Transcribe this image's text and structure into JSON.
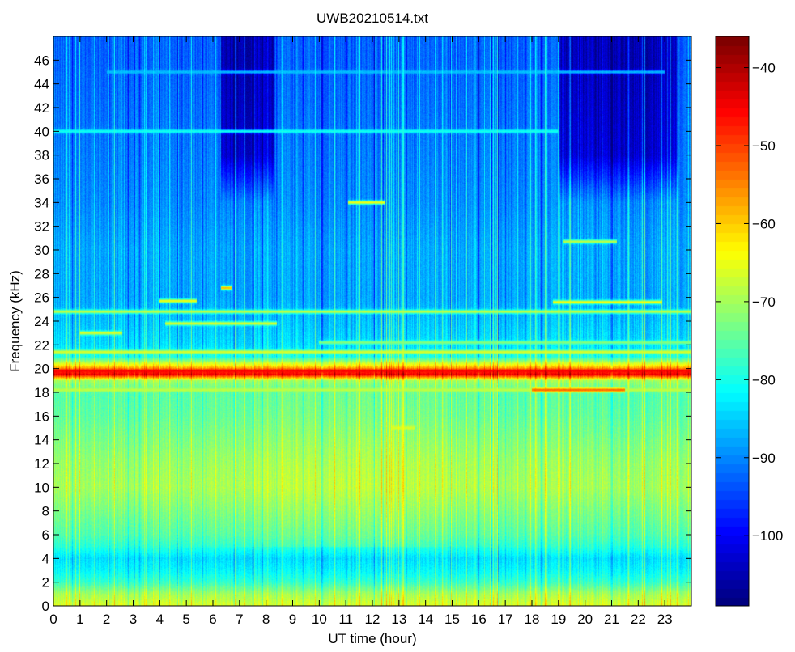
{
  "chart_data": {
    "type": "heatmap",
    "title": "UWB20210514.txt",
    "xlabel": "UT time (hour)",
    "ylabel": "Frequency (kHz)",
    "xlim": [
      0,
      24
    ],
    "ylim": [
      0,
      48
    ],
    "x_ticks": [
      "0",
      "1",
      "2",
      "3",
      "4",
      "5",
      "6",
      "7",
      "8",
      "9",
      "10",
      "11",
      "12",
      "13",
      "14",
      "15",
      "16",
      "17",
      "18",
      "19",
      "20",
      "21",
      "22",
      "23"
    ],
    "y_ticks": [
      "0",
      "2",
      "4",
      "6",
      "8",
      "10",
      "12",
      "14",
      "16",
      "18",
      "20",
      "22",
      "24",
      "26",
      "28",
      "30",
      "32",
      "34",
      "36",
      "38",
      "40",
      "42",
      "44",
      "46"
    ],
    "colorbar": {
      "colormap": "jet",
      "range": [
        -109,
        -36
      ],
      "ticks": [
        "-40",
        "-50",
        "-60",
        "-70",
        "-80",
        "-90",
        "-100"
      ]
    },
    "background_profile": {
      "description_free": true,
      "freq_khz": [
        0,
        1,
        2,
        3,
        4,
        5,
        6,
        8,
        10,
        12,
        14,
        16,
        18,
        19,
        19.5,
        21,
        22,
        24,
        26,
        30,
        34,
        38,
        42,
        46,
        48
      ],
      "level_db": [
        -66,
        -70,
        -78,
        -82,
        -84,
        -79,
        -76,
        -73,
        -70,
        -71,
        -73,
        -75,
        -76,
        -70,
        -44,
        -80,
        -84,
        -86,
        -88,
        -88,
        -90,
        -91,
        -92,
        -93,
        -93
      ]
    },
    "narrowband_lines": [
      {
        "freq_khz": 19.8,
        "start_h": 0,
        "end_h": 24,
        "level_db": -45
      },
      {
        "freq_khz": 18.2,
        "start_h": 0,
        "end_h": 24,
        "level_db": -68
      },
      {
        "freq_khz": 21.4,
        "start_h": 0,
        "end_h": 24,
        "level_db": -66
      },
      {
        "freq_khz": 24.8,
        "start_h": 0,
        "end_h": 24,
        "level_db": -68
      },
      {
        "freq_khz": 22.2,
        "start_h": 10,
        "end_h": 24,
        "level_db": -72
      },
      {
        "freq_khz": 23.0,
        "start_h": 1,
        "end_h": 2.6,
        "level_db": -66
      },
      {
        "freq_khz": 23.8,
        "start_h": 4.2,
        "end_h": 8.4,
        "level_db": -66
      },
      {
        "freq_khz": 25.7,
        "start_h": 4.0,
        "end_h": 5.4,
        "level_db": -64
      },
      {
        "freq_khz": 26.8,
        "start_h": 6.3,
        "end_h": 6.7,
        "level_db": -58
      },
      {
        "freq_khz": 34.0,
        "start_h": 11.1,
        "end_h": 12.5,
        "level_db": -64
      },
      {
        "freq_khz": 15.0,
        "start_h": 12.7,
        "end_h": 13.6,
        "level_db": -66
      },
      {
        "freq_khz": 40.0,
        "start_h": 0,
        "end_h": 19,
        "level_db": -80
      },
      {
        "freq_khz": 45.0,
        "start_h": 2,
        "end_h": 23,
        "level_db": -86
      },
      {
        "freq_khz": 30.7,
        "start_h": 19.2,
        "end_h": 21.2,
        "level_db": -68
      },
      {
        "freq_khz": 25.6,
        "start_h": 18.8,
        "end_h": 22.9,
        "level_db": -64
      },
      {
        "freq_khz": 18.2,
        "start_h": 18.0,
        "end_h": 21.5,
        "level_db": -52
      }
    ],
    "quiet_regions": [
      {
        "start_h": 6.3,
        "end_h": 8.3,
        "min_khz": 34,
        "max_khz": 48,
        "delta_db": -12
      },
      {
        "start_h": 19.0,
        "end_h": 23.5,
        "min_khz": 34,
        "max_khz": 48,
        "delta_db": -12
      }
    ]
  }
}
